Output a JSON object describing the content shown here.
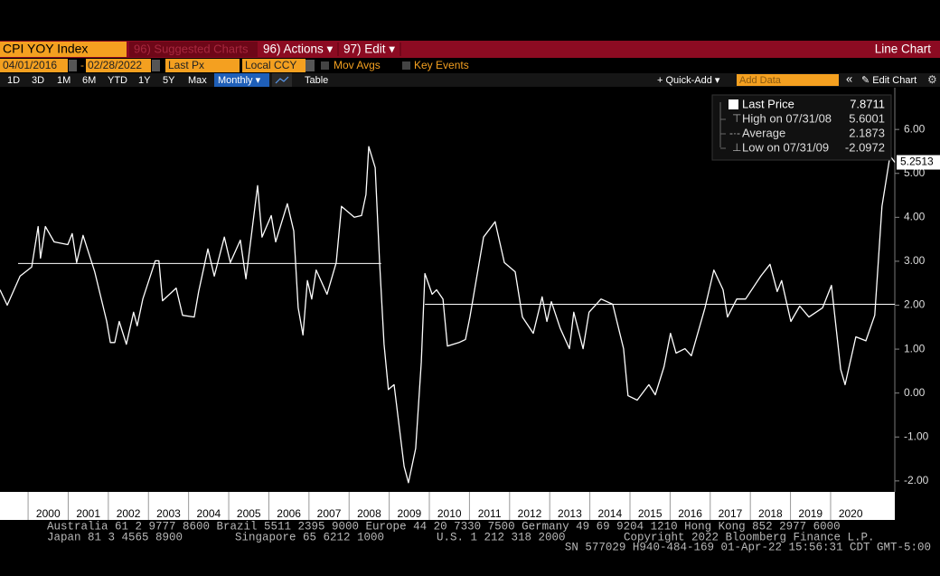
{
  "toolbar": {
    "ticker": "CPI YOY Index",
    "suggested": "96) Suggested Charts",
    "actions": "96) Actions ▾",
    "edit": "97) Edit ▾",
    "view": "Line Chart",
    "start_date": "04/01/2016",
    "date_sep": "-",
    "end_date": "02/28/2022",
    "field": "Last Px",
    "currency": "Local CCY",
    "mov_avgs": "Mov Avgs",
    "key_events": "Key Events",
    "periods": [
      "1D",
      "3D",
      "1M",
      "6M",
      "YTD",
      "1Y",
      "5Y",
      "Max"
    ],
    "frequency": "Monthly ▾",
    "table": "Table",
    "quick_add": "+ Quick-Add ▾",
    "add_data": "Add Data",
    "collapse": "«",
    "edit_chart": "✎ Edit Chart",
    "settings": "⚙"
  },
  "chart_data": {
    "type": "line",
    "series": [
      {
        "name": "Last Price",
        "color": "#ffffff",
        "x": [
          1999.3,
          1999.48,
          1999.8,
          2000.09,
          2000.25,
          2000.31,
          2000.43,
          2000.65,
          2000.99,
          2001.1,
          2001.21,
          2001.37,
          2001.66,
          2001.96,
          2002.05,
          2002.16,
          2002.27,
          2002.45,
          2002.63,
          2002.72,
          2002.86,
          2003.17,
          2003.26,
          2003.35,
          2003.69,
          2003.85,
          2004.14,
          2004.25,
          2004.48,
          2004.64,
          2004.89,
          2005.04,
          2005.29,
          2005.43,
          2005.72,
          2005.83,
          2006.06,
          2006.17,
          2006.46,
          2006.62,
          2006.73,
          2006.85,
          2006.96,
          2007.07,
          2007.18,
          2007.45,
          2007.68,
          2007.81,
          2008.13,
          2008.31,
          2008.42,
          2008.49,
          2008.65,
          2008.76,
          2008.87,
          2008.98,
          2009.12,
          2009.37,
          2009.48,
          2009.66,
          2009.8,
          2009.89,
          2010.07,
          2010.18,
          2010.34,
          2010.45,
          2010.74,
          2010.9,
          2011.01,
          2011.35,
          2011.64,
          2011.87,
          2012.14,
          2012.32,
          2012.59,
          2012.81,
          2012.93,
          2013.04,
          2013.26,
          2013.49,
          2013.6,
          2013.83,
          2013.98,
          2014.28,
          2014.57,
          2014.84,
          2014.95,
          2015.18,
          2015.47,
          2015.63,
          2015.85,
          2016.01,
          2016.15,
          2016.37,
          2016.53,
          2016.87,
          2017.09,
          2017.32,
          2017.43,
          2017.66,
          2017.88,
          2018.26,
          2018.49,
          2018.67,
          2018.78,
          2019.01,
          2019.23,
          2019.46,
          2019.8,
          2020.02,
          2020.25,
          2020.36,
          2020.63,
          2020.88,
          2021.1,
          2021.28,
          2021.48,
          2021.6
        ],
        "values": [
          2.35,
          2.0,
          2.66,
          2.87,
          3.79,
          3.07,
          3.79,
          3.44,
          3.38,
          3.63,
          2.97,
          3.59,
          2.76,
          1.63,
          1.15,
          1.15,
          1.63,
          1.11,
          1.84,
          1.53,
          2.14,
          3.01,
          3.01,
          2.1,
          2.39,
          1.77,
          1.73,
          2.31,
          3.28,
          2.66,
          3.55,
          2.97,
          3.48,
          2.6,
          4.72,
          3.55,
          4.04,
          3.44,
          4.31,
          3.69,
          1.94,
          1.32,
          2.56,
          2.14,
          2.8,
          2.25,
          2.97,
          4.25,
          4.0,
          4.04,
          4.52,
          5.61,
          5.13,
          2.97,
          1.11,
          0.08,
          0.19,
          -1.67,
          -2.04,
          -1.26,
          0.7,
          2.72,
          2.25,
          2.35,
          2.14,
          1.07,
          1.15,
          1.22,
          1.73,
          3.55,
          3.9,
          2.97,
          2.76,
          1.73,
          1.36,
          2.19,
          1.63,
          2.08,
          1.48,
          1.01,
          1.84,
          1.01,
          1.84,
          2.14,
          2.02,
          1.01,
          -0.06,
          -0.16,
          0.19,
          -0.04,
          0.6,
          1.36,
          0.91,
          1.01,
          0.85,
          1.94,
          2.8,
          2.35,
          1.73,
          2.14,
          2.14,
          2.66,
          2.93,
          2.31,
          2.56,
          1.63,
          1.98,
          1.73,
          1.94,
          2.45,
          0.54,
          0.19,
          1.28,
          1.19,
          1.77,
          4.25,
          5.4,
          5.2513
        ]
      }
    ],
    "last_price": 7.8711,
    "stats": [
      {
        "label": "High on 07/31/08",
        "value": 5.6001
      },
      {
        "label": "Average",
        "value": 2.1873
      },
      {
        "label": "Low on 07/31/09",
        "value": -2.0972
      }
    ],
    "reference_lines": [
      {
        "value": 2.95,
        "x": [
          1999.75,
          2008.8
        ]
      },
      {
        "value": 2.02,
        "x": [
          2009.89,
          2021.6
        ]
      }
    ],
    "xlim": [
      1999.3,
      2021.6
    ],
    "xticks": [
      {
        "value": 2000,
        "label": "2000"
      },
      {
        "value": 2001,
        "label": "2001"
      },
      {
        "value": 2002,
        "label": "2002"
      },
      {
        "value": 2003,
        "label": "2003"
      },
      {
        "value": 2004,
        "label": "2004"
      },
      {
        "value": 2005,
        "label": "2005"
      },
      {
        "value": 2006,
        "label": "2006"
      },
      {
        "value": 2007,
        "label": "2007"
      },
      {
        "value": 2008,
        "label": "2008"
      },
      {
        "value": 2009,
        "label": "2009"
      },
      {
        "value": 2010,
        "label": "2010"
      },
      {
        "value": 2011,
        "label": "2011"
      },
      {
        "value": 2012,
        "label": "2012"
      },
      {
        "value": 2013,
        "label": "2013"
      },
      {
        "value": 2014,
        "label": "2014"
      },
      {
        "value": 2015,
        "label": "2015"
      },
      {
        "value": 2016,
        "label": "2016"
      },
      {
        "value": 2017,
        "label": "2017"
      },
      {
        "value": 2018,
        "label": "2018"
      },
      {
        "value": 2019,
        "label": "2019"
      },
      {
        "value": 2020,
        "label": "2020"
      }
    ],
    "ylim": [
      -2.25,
      6.95
    ],
    "yticks": [
      {
        "value": -2,
        "label": "-2.00"
      },
      {
        "value": -1,
        "label": "-1.00"
      },
      {
        "value": 0,
        "label": "0.00"
      },
      {
        "value": 1,
        "label": "1.00"
      },
      {
        "value": 2,
        "label": "2.00"
      },
      {
        "value": 3,
        "label": "3.00"
      },
      {
        "value": 4,
        "label": "4.00"
      },
      {
        "value": 5,
        "label": "5.00"
      },
      {
        "value": 6,
        "label": "6.00"
      }
    ]
  },
  "footer": {
    "line1": "Australia 61 2 9777 8600 Brazil 5511 2395 9000 Europe 44 20 7330 7500 Germany 49 69 9204 1210 Hong Kong 852 2977 6000",
    "japan": "Japan 81 3 4565 8900",
    "singapore": "Singapore 65 6212 1000",
    "us": "U.S. 1 212 318 2000",
    "copyright": "Copyright 2022 Bloomberg Finance L.P.",
    "session": "SN 577029 H940-484-169 01-Apr-22 15:56:31 CDT  GMT-5:00"
  }
}
